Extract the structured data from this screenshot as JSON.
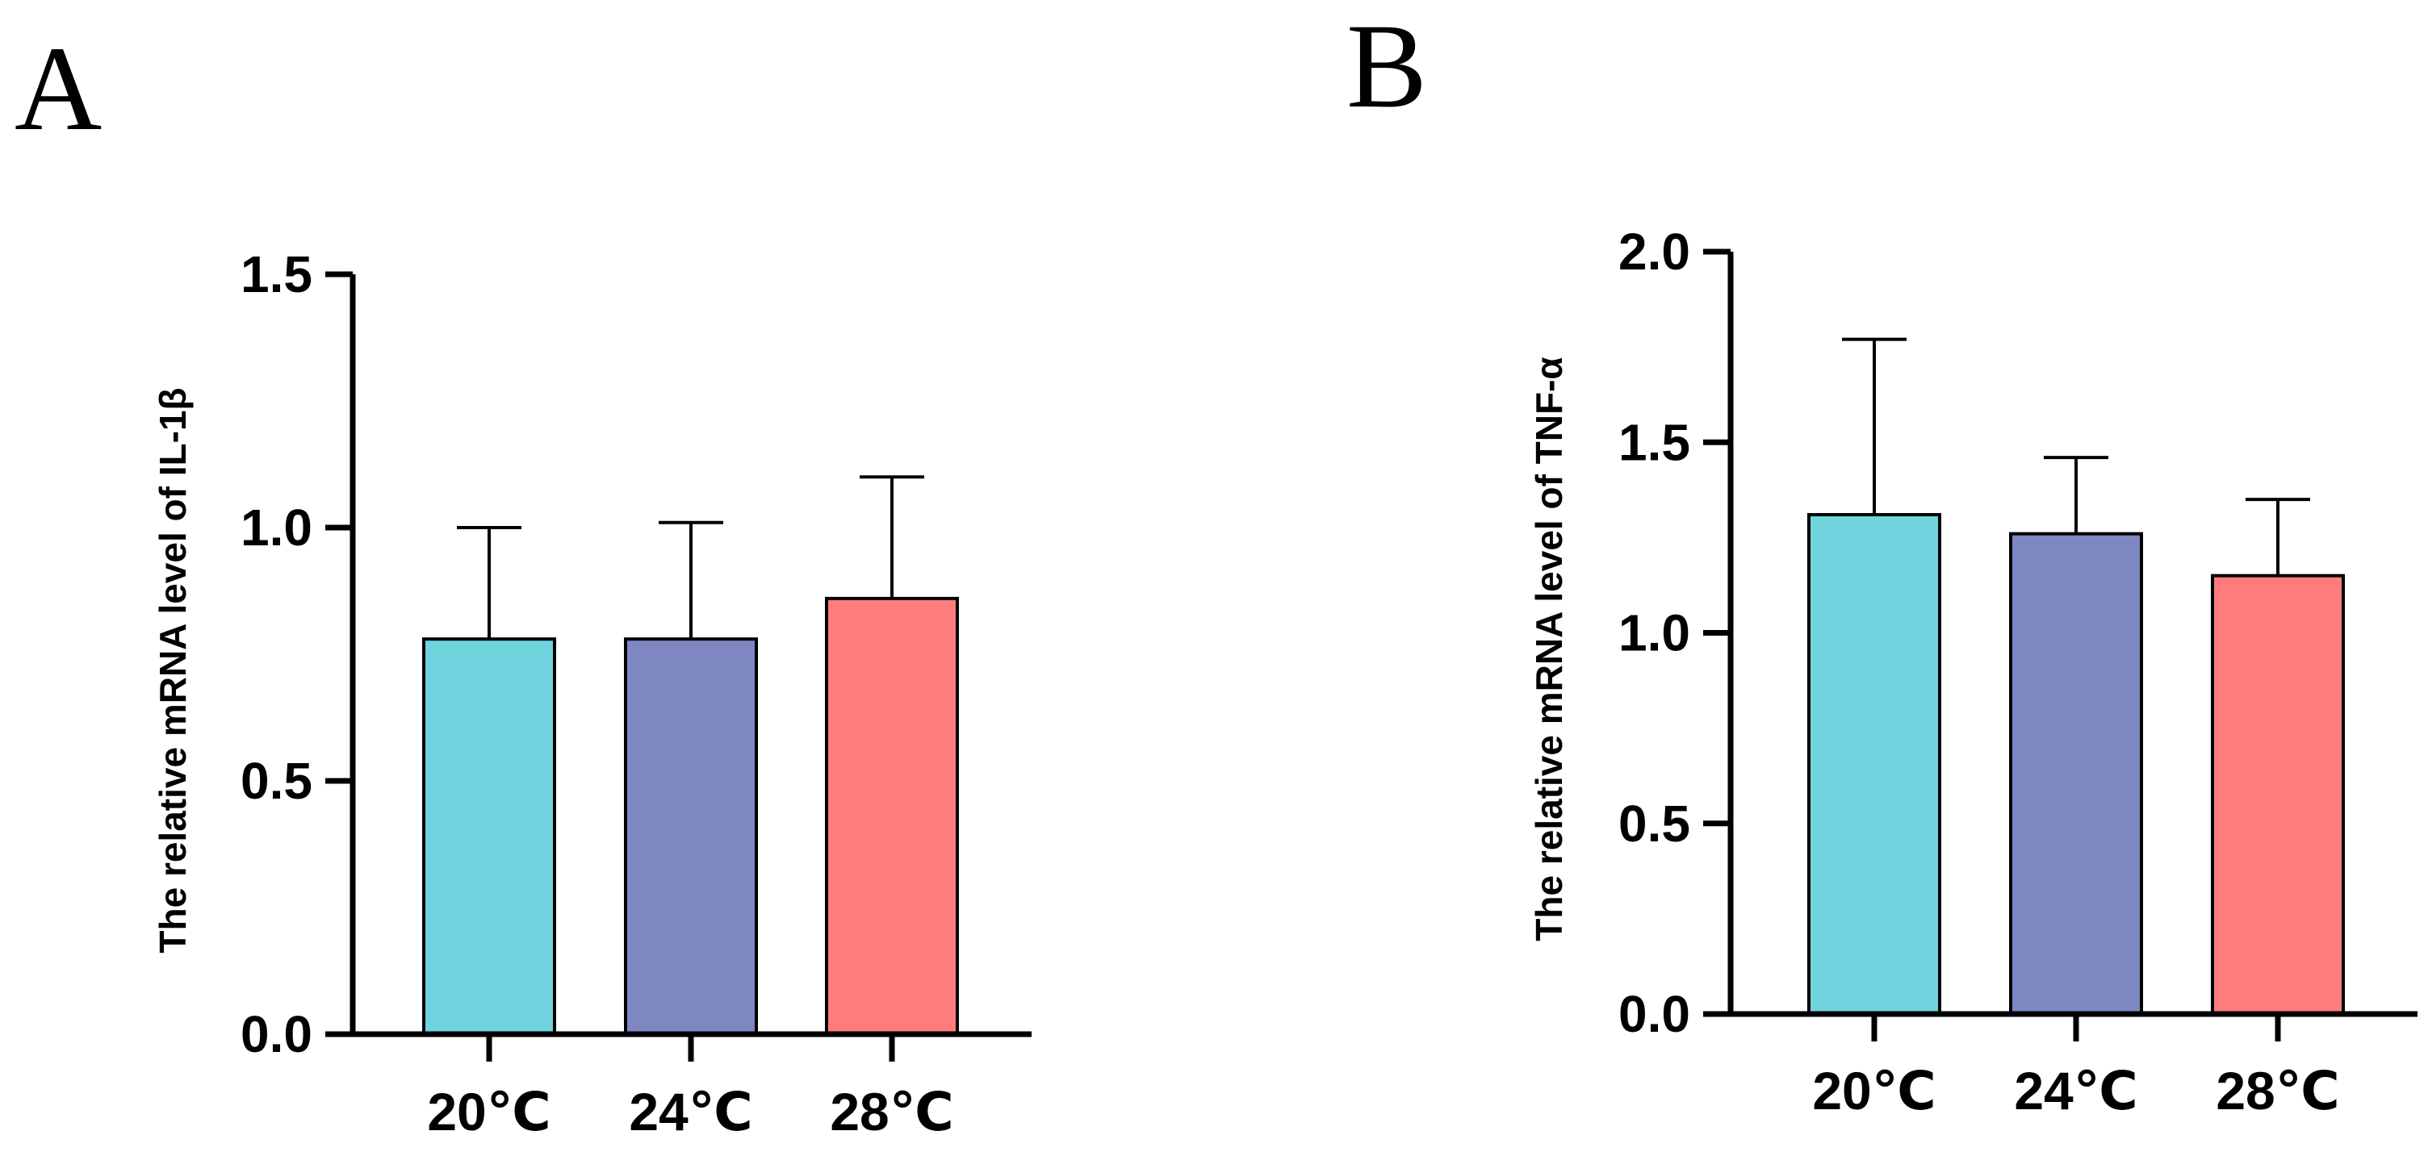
{
  "figure": {
    "panel_labels": [
      "A",
      "B"
    ]
  },
  "chart_data": [
    {
      "panel": "A",
      "type": "bar",
      "title": "",
      "xlabel": "",
      "ylabel": "The relative mRNA level of IL-1β",
      "categories": [
        "20℃",
        "24℃",
        "28℃"
      ],
      "values": [
        0.78,
        0.78,
        0.86
      ],
      "error_upper": [
        1.0,
        1.01,
        1.1
      ],
      "ylim": [
        0,
        1.5
      ],
      "yticks": [
        0.0,
        0.5,
        1.0,
        1.5
      ],
      "ytick_labels": [
        "0.0",
        "0.5",
        "1.0",
        "1.5"
      ],
      "colors": [
        "#70D4DE",
        "#7F87C2",
        "#FF7B7C"
      ],
      "grid": false
    },
    {
      "panel": "B",
      "type": "bar",
      "title": "",
      "xlabel": "",
      "ylabel": "The relative mRNA level of TNF-α",
      "categories": [
        "20℃",
        "24℃",
        "28℃"
      ],
      "values": [
        1.31,
        1.26,
        1.15
      ],
      "error_upper": [
        1.77,
        1.46,
        1.35
      ],
      "ylim": [
        0,
        2.0
      ],
      "yticks": [
        0.0,
        0.5,
        1.0,
        1.5,
        2.0
      ],
      "ytick_labels": [
        "0.0",
        "0.5",
        "1.0",
        "1.5",
        "2.0"
      ],
      "colors": [
        "#70D4DE",
        "#7F87C2",
        "#FF7B7C"
      ],
      "grid": false
    }
  ]
}
